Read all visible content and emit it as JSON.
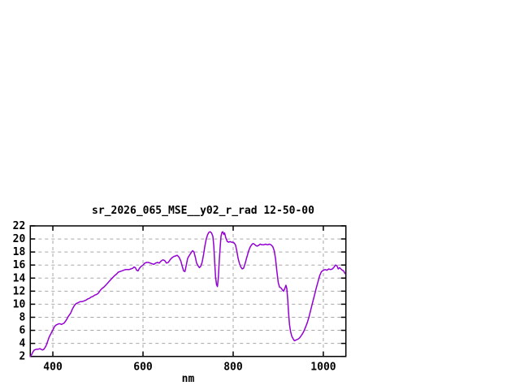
{
  "window": {
    "background": "#ffffff"
  },
  "chart": {
    "title": "sr_2026_065_MSE__y02_r_rad 12-50-00",
    "xlabel": "nm"
  },
  "chart_data": {
    "type": "line",
    "title": "sr_2026_065_MSE__y02_r_rad 12-50-00",
    "xlabel": "nm",
    "ylabel": "",
    "xlim": [
      350,
      1050
    ],
    "ylim": [
      2,
      22
    ],
    "x_ticks": [
      400,
      600,
      800,
      1000
    ],
    "y_ticks": [
      2,
      4,
      6,
      8,
      10,
      12,
      14,
      16,
      18,
      20,
      22
    ],
    "grid": true,
    "grid_style": "dashed",
    "grid_color": "#a6a6a6",
    "border_color": "#000000",
    "line_color": "#9400d3",
    "legend": "none",
    "series": [
      {
        "name": "sr_2026_065_MSE__y02_r_rad",
        "points": [
          [
            350,
            2.0
          ],
          [
            353,
            2.3
          ],
          [
            356,
            2.7
          ],
          [
            359,
            3.0
          ],
          [
            363,
            3.1
          ],
          [
            367,
            3.1
          ],
          [
            371,
            3.2
          ],
          [
            374,
            3.1
          ],
          [
            377,
            3.0
          ],
          [
            380,
            3.1
          ],
          [
            383,
            3.4
          ],
          [
            386,
            3.8
          ],
          [
            389,
            4.4
          ],
          [
            392,
            5.0
          ],
          [
            395,
            5.4
          ],
          [
            398,
            5.8
          ],
          [
            401,
            6.2
          ],
          [
            404,
            6.6
          ],
          [
            407,
            6.8
          ],
          [
            410,
            6.9
          ],
          [
            413,
            7.0
          ],
          [
            416,
            7.0
          ],
          [
            419,
            6.9
          ],
          [
            422,
            7.0
          ],
          [
            425,
            7.1
          ],
          [
            428,
            7.4
          ],
          [
            431,
            7.7
          ],
          [
            434,
            8.1
          ],
          [
            437,
            8.4
          ],
          [
            440,
            8.7
          ],
          [
            443,
            9.2
          ],
          [
            446,
            9.6
          ],
          [
            449,
            9.9
          ],
          [
            452,
            10.1
          ],
          [
            455,
            10.2
          ],
          [
            458,
            10.3
          ],
          [
            461,
            10.4
          ],
          [
            465,
            10.4
          ],
          [
            469,
            10.5
          ],
          [
            473,
            10.6
          ],
          [
            477,
            10.8
          ],
          [
            481,
            10.9
          ],
          [
            485,
            11.1
          ],
          [
            489,
            11.2
          ],
          [
            493,
            11.4
          ],
          [
            497,
            11.5
          ],
          [
            501,
            11.7
          ],
          [
            505,
            12.1
          ],
          [
            509,
            12.4
          ],
          [
            513,
            12.6
          ],
          [
            517,
            12.9
          ],
          [
            521,
            13.2
          ],
          [
            525,
            13.5
          ],
          [
            529,
            13.8
          ],
          [
            533,
            14.1
          ],
          [
            537,
            14.4
          ],
          [
            541,
            14.6
          ],
          [
            545,
            14.9
          ],
          [
            549,
            15.0
          ],
          [
            553,
            15.1
          ],
          [
            557,
            15.2
          ],
          [
            561,
            15.3
          ],
          [
            565,
            15.3
          ],
          [
            569,
            15.3
          ],
          [
            573,
            15.4
          ],
          [
            577,
            15.5
          ],
          [
            580,
            15.7
          ],
          [
            583,
            15.6
          ],
          [
            586,
            15.2
          ],
          [
            589,
            15.1
          ],
          [
            592,
            15.5
          ],
          [
            596,
            15.8
          ],
          [
            600,
            16.0
          ],
          [
            604,
            16.3
          ],
          [
            608,
            16.4
          ],
          [
            612,
            16.4
          ],
          [
            616,
            16.3
          ],
          [
            620,
            16.2
          ],
          [
            624,
            16.1
          ],
          [
            628,
            16.3
          ],
          [
            632,
            16.4
          ],
          [
            636,
            16.3
          ],
          [
            640,
            16.6
          ],
          [
            644,
            16.8
          ],
          [
            648,
            16.7
          ],
          [
            652,
            16.3
          ],
          [
            656,
            16.4
          ],
          [
            660,
            16.8
          ],
          [
            664,
            17.1
          ],
          [
            668,
            17.3
          ],
          [
            672,
            17.4
          ],
          [
            676,
            17.5
          ],
          [
            680,
            17.2
          ],
          [
            684,
            16.6
          ],
          [
            687,
            15.8
          ],
          [
            690,
            15.1
          ],
          [
            693,
            15.0
          ],
          [
            696,
            16.0
          ],
          [
            699,
            17.0
          ],
          [
            702,
            17.4
          ],
          [
            706,
            17.8
          ],
          [
            710,
            18.2
          ],
          [
            713,
            18.0
          ],
          [
            716,
            17.2
          ],
          [
            719,
            16.3
          ],
          [
            722,
            15.9
          ],
          [
            725,
            15.6
          ],
          [
            728,
            15.8
          ],
          [
            731,
            16.4
          ],
          [
            734,
            17.5
          ],
          [
            737,
            18.8
          ],
          [
            740,
            19.9
          ],
          [
            743,
            20.6
          ],
          [
            746,
            21.0
          ],
          [
            749,
            21.1
          ],
          [
            752,
            20.9
          ],
          [
            755,
            20.4
          ],
          [
            757,
            19.0
          ],
          [
            759,
            16.5
          ],
          [
            761,
            14.2
          ],
          [
            763,
            13.0
          ],
          [
            765,
            12.7
          ],
          [
            767,
            14.0
          ],
          [
            769,
            16.5
          ],
          [
            771,
            18.6
          ],
          [
            773,
            20.4
          ],
          [
            775,
            21.0
          ],
          [
            777,
            21.1
          ],
          [
            779,
            20.7
          ],
          [
            781,
            20.9
          ],
          [
            784,
            20.1
          ],
          [
            787,
            19.6
          ],
          [
            790,
            19.5
          ],
          [
            793,
            19.6
          ],
          [
            796,
            19.5
          ],
          [
            799,
            19.5
          ],
          [
            802,
            19.4
          ],
          [
            805,
            19.1
          ],
          [
            808,
            18.2
          ],
          [
            811,
            17.0
          ],
          [
            814,
            16.2
          ],
          [
            817,
            15.7
          ],
          [
            820,
            15.4
          ],
          [
            823,
            15.5
          ],
          [
            826,
            16.1
          ],
          [
            829,
            16.9
          ],
          [
            832,
            17.6
          ],
          [
            835,
            18.3
          ],
          [
            838,
            18.8
          ],
          [
            841,
            19.1
          ],
          [
            844,
            19.3
          ],
          [
            847,
            19.2
          ],
          [
            850,
            19.0
          ],
          [
            853,
            18.9
          ],
          [
            856,
            19.0
          ],
          [
            860,
            19.2
          ],
          [
            864,
            19.1
          ],
          [
            868,
            19.1
          ],
          [
            872,
            19.2
          ],
          [
            876,
            19.1
          ],
          [
            880,
            19.2
          ],
          [
            884,
            19.1
          ],
          [
            888,
            18.8
          ],
          [
            891,
            18.2
          ],
          [
            894,
            17.0
          ],
          [
            897,
            15.0
          ],
          [
            900,
            13.3
          ],
          [
            903,
            12.6
          ],
          [
            906,
            12.5
          ],
          [
            909,
            12.2
          ],
          [
            912,
            12.0
          ],
          [
            915,
            12.5
          ],
          [
            917,
            12.9
          ],
          [
            919,
            12.4
          ],
          [
            921,
            10.8
          ],
          [
            923,
            8.6
          ],
          [
            925,
            6.9
          ],
          [
            927,
            5.9
          ],
          [
            930,
            5.1
          ],
          [
            933,
            4.7
          ],
          [
            936,
            4.4
          ],
          [
            939,
            4.5
          ],
          [
            942,
            4.6
          ],
          [
            945,
            4.7
          ],
          [
            948,
            4.9
          ],
          [
            951,
            5.2
          ],
          [
            954,
            5.5
          ],
          [
            957,
            5.9
          ],
          [
            960,
            6.4
          ],
          [
            964,
            7.1
          ],
          [
            968,
            8.0
          ],
          [
            972,
            9.1
          ],
          [
            976,
            10.2
          ],
          [
            980,
            11.3
          ],
          [
            984,
            12.4
          ],
          [
            988,
            13.4
          ],
          [
            992,
            14.4
          ],
          [
            996,
            15.0
          ],
          [
            1000,
            15.2
          ],
          [
            1004,
            15.3
          ],
          [
            1008,
            15.2
          ],
          [
            1012,
            15.4
          ],
          [
            1016,
            15.3
          ],
          [
            1020,
            15.4
          ],
          [
            1024,
            15.7
          ],
          [
            1027,
            16.0
          ],
          [
            1030,
            15.9
          ],
          [
            1033,
            15.4
          ],
          [
            1036,
            15.6
          ],
          [
            1039,
            15.4
          ],
          [
            1042,
            15.2
          ],
          [
            1045,
            15.1
          ],
          [
            1048,
            14.7
          ]
        ]
      }
    ]
  }
}
